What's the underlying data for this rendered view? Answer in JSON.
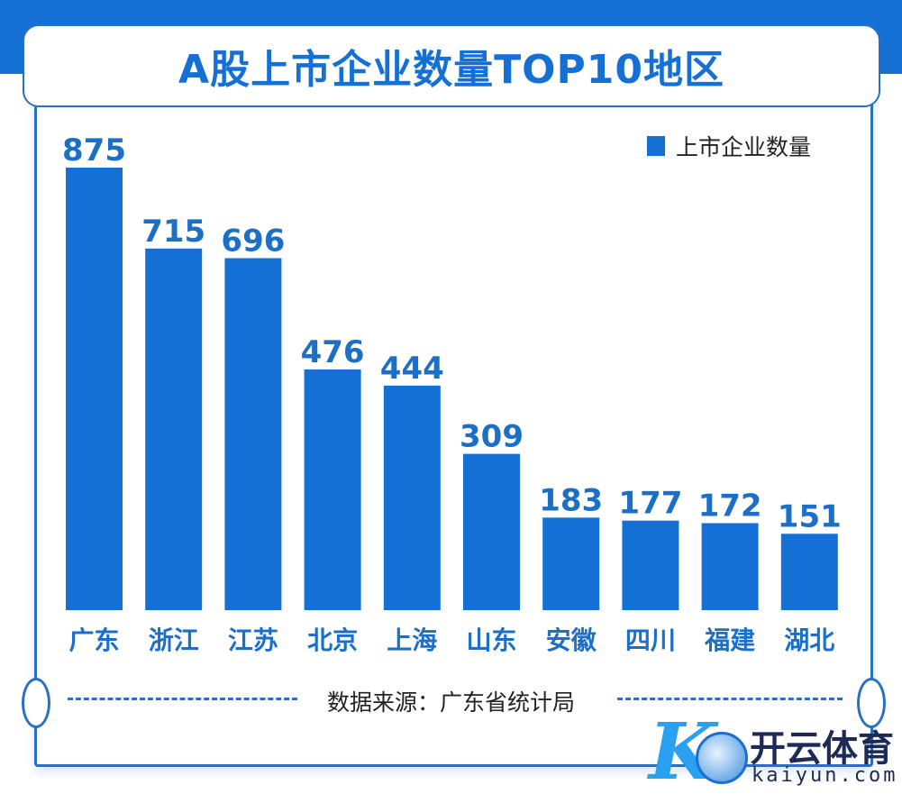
{
  "title": "A股上市企业数量TOP10地区",
  "source": "数据来源：广东省统计局",
  "logo": {
    "cn": "开云体育",
    "en": "kaiyun.com"
  },
  "colors": {
    "bar": "#1470d4",
    "label": "#1c6fc6",
    "border": "#2a6fc0"
  },
  "chart_data": {
    "type": "bar",
    "title": "A股上市企业数量TOP10地区",
    "categories": [
      "广东",
      "浙江",
      "江苏",
      "北京",
      "上海",
      "山东",
      "安徽",
      "四川",
      "福建",
      "湖北"
    ],
    "series": [
      {
        "name": "上市企业数量",
        "values": [
          875,
          715,
          696,
          476,
          444,
          309,
          183,
          177,
          172,
          151
        ]
      }
    ],
    "legend": "top-right",
    "grid": false,
    "ylim": [
      0,
      875
    ]
  }
}
